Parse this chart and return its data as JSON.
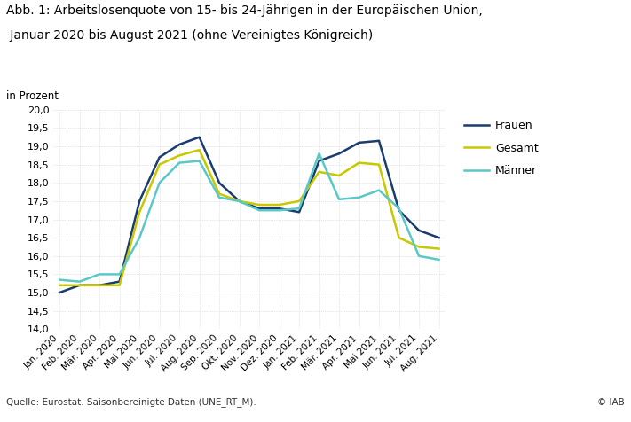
{
  "title_line1": "Abb. 1: Arbeitslosenquote von 15- bis 24-Jährigen in der Europäischen Union,",
  "title_line2": " Januar 2020 bis August 2021 (ohne Vereinigtes Königreich)",
  "ylabel": "in Prozent",
  "source": "Quelle: Eurostat. Saisonbereinigte Daten (UNE_RT_M).",
  "copyright": "© IAB",
  "x_labels": [
    "Jan. 2020",
    "Feb. 2020",
    "Mär. 2020",
    "Apr. 2020",
    "Mai 2020",
    "Jun. 2020",
    "Jul. 2020",
    "Aug. 2020",
    "Sep. 2020",
    "Okt. 2020",
    "Nov. 2020",
    "Dez. 2020",
    "Jan. 2021",
    "Feb. 2021",
    "Mär. 2021",
    "Apr. 2021",
    "Mai 2021",
    "Jun. 2021",
    "Jul. 2021",
    "Aug. 2021"
  ],
  "frauen": [
    15.0,
    15.2,
    15.2,
    15.3,
    17.5,
    18.7,
    19.05,
    19.25,
    18.0,
    17.5,
    17.3,
    17.3,
    17.2,
    18.6,
    18.8,
    19.1,
    19.15,
    17.25,
    16.7,
    16.5
  ],
  "gesamt": [
    15.2,
    15.2,
    15.2,
    15.2,
    17.2,
    18.5,
    18.75,
    18.9,
    17.7,
    17.5,
    17.4,
    17.4,
    17.5,
    18.3,
    18.2,
    18.55,
    18.5,
    16.5,
    16.25,
    16.2
  ],
  "maenner": [
    15.35,
    15.3,
    15.5,
    15.5,
    16.5,
    18.0,
    18.55,
    18.6,
    17.6,
    17.5,
    17.25,
    17.25,
    17.3,
    18.8,
    17.55,
    17.6,
    17.8,
    17.3,
    16.0,
    15.9
  ],
  "frauen_color": "#1a3c6e",
  "gesamt_color": "#c8c800",
  "maenner_color": "#5bc8c8",
  "ylim_min": 14.0,
  "ylim_max": 20.0,
  "ytick_step": 0.5,
  "line_width": 1.8,
  "background_color": "#ffffff",
  "grid_color": "#cccccc"
}
